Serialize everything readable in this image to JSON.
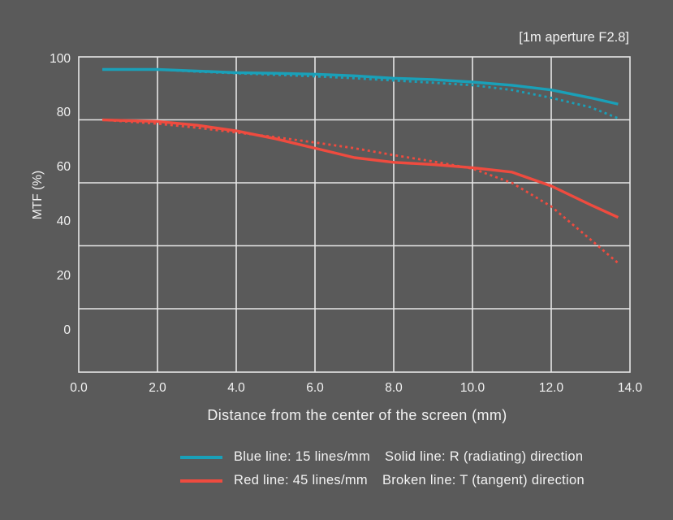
{
  "chart_data": {
    "type": "line",
    "note": "[1m aperture F2.8]",
    "xlabel": "Distance from the center of the screen (mm)",
    "ylabel": "MTF (%)",
    "x_ticks": [
      "0.0",
      "2.0",
      "4.0",
      "6.0",
      "8.0",
      "10.0",
      "12.0",
      "14.0"
    ],
    "y_ticks": [
      "100",
      "80",
      "60",
      "40",
      "20",
      "0"
    ],
    "xlim": [
      0,
      14
    ],
    "ylim": [
      -15,
      100
    ],
    "grid": true,
    "colors": {
      "blue": "#1aa0b8",
      "red": "#ef4b3f",
      "background": "#5a5a5a",
      "grid": "#e6e6e6"
    },
    "series": [
      {
        "color": "blue",
        "style": "solid",
        "x": [
          0.6,
          2.0,
          3.0,
          4.0,
          5.0,
          6.0,
          7.0,
          8.0,
          9.0,
          10.0,
          11.0,
          12.0,
          13.0,
          13.7
        ],
        "y": [
          96,
          96,
          95.5,
          95,
          94.8,
          94.5,
          94,
          93.2,
          92.8,
          92,
          91,
          89.5,
          87,
          85
        ]
      },
      {
        "color": "blue",
        "style": "dotted",
        "x": [
          0.6,
          2.0,
          3.0,
          4.0,
          5.0,
          6.0,
          7.0,
          8.0,
          9.0,
          10.0,
          11.0,
          12.0,
          13.0,
          13.7
        ],
        "y": [
          96,
          96,
          95.3,
          94.8,
          94.3,
          93.8,
          93.2,
          92.5,
          91.8,
          91,
          89.5,
          87,
          84,
          80.5
        ]
      },
      {
        "color": "red",
        "style": "solid",
        "x": [
          0.6,
          2.0,
          3.0,
          4.0,
          5.0,
          6.0,
          7.0,
          8.0,
          9.0,
          10.0,
          11.0,
          12.0,
          13.0,
          13.7
        ],
        "y": [
          80,
          79.5,
          78.3,
          76.5,
          74,
          71,
          68,
          66.5,
          65.8,
          64.8,
          63.4,
          59,
          53,
          49
        ]
      },
      {
        "color": "red",
        "style": "dotted",
        "x": [
          0.6,
          2.0,
          3.0,
          4.0,
          5.0,
          6.0,
          7.0,
          8.0,
          9.0,
          10.0,
          11.0,
          12.0,
          13.0,
          13.7
        ],
        "y": [
          80,
          78.8,
          77.5,
          76,
          74.5,
          72.8,
          71,
          68.8,
          66.8,
          64.5,
          60,
          52.5,
          42,
          34.5
        ]
      }
    ]
  },
  "legend": {
    "blue_label": "Blue line: 15 lines/mm",
    "red_label": "Red line: 45 lines/mm",
    "solid_label": "Solid line: R (radiating) direction",
    "broken_label": "Broken line: T (tangent) direction"
  }
}
